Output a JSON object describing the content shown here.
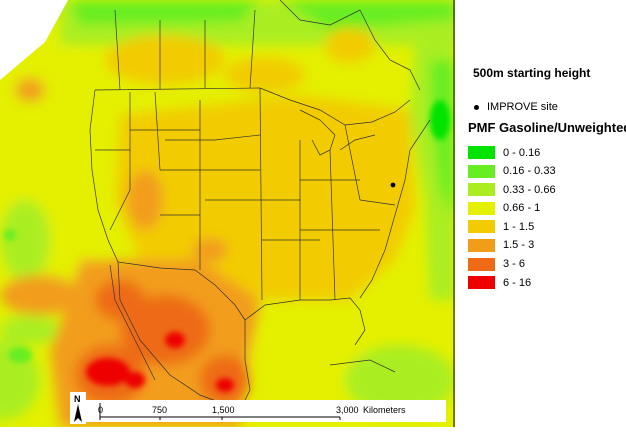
{
  "map": {
    "subtitle": "500m starting height",
    "site_marker_label": "IMPROVE site",
    "legend_title": "PMF Gasoline/Unweighted",
    "legend": [
      {
        "label": "0 - 0.16",
        "color": "#00e400"
      },
      {
        "label": "0.16 - 0.33",
        "color": "#66ee22"
      },
      {
        "label": "0.33 - 0.66",
        "color": "#aaee22"
      },
      {
        "label": "0.66 - 1",
        "color": "#e4f000"
      },
      {
        "label": "1 - 1.5",
        "color": "#f2cc00"
      },
      {
        "label": "1.5 - 3",
        "color": "#f29d1a"
      },
      {
        "label": "3 - 6",
        "color": "#ee6a14"
      },
      {
        "label": "6 - 16",
        "color": "#ee0000"
      }
    ],
    "scalebar": {
      "ticks": [
        "0",
        "750",
        "1,500",
        "3,000"
      ],
      "unit": "Kilometers"
    },
    "north_label": "N"
  }
}
